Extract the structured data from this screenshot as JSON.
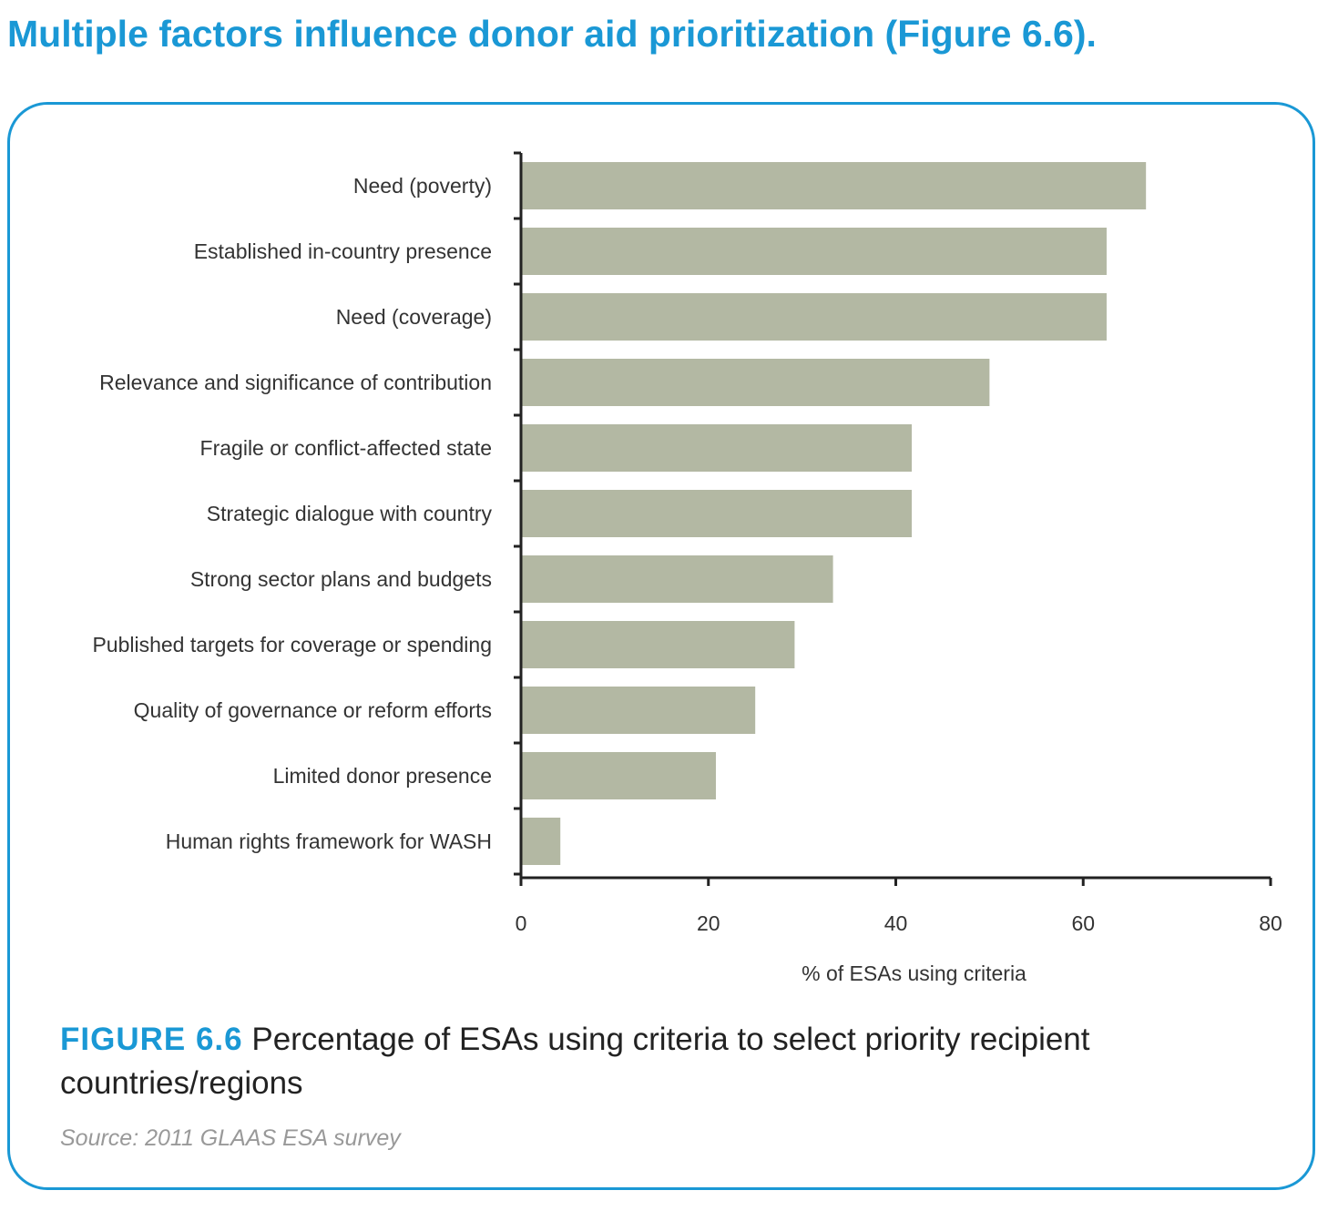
{
  "heading": "Multiple factors influence donor aid prioritization (Figure 6.6).",
  "figure": {
    "label": "FIGURE 6.6",
    "caption": "Percentage of ESAs using criteria to select priority recipient countries/regions",
    "source": "Source: 2011 GLAAS ESA survey"
  },
  "colors": {
    "accent": "#1a98d5",
    "bar": "#b3b8a3",
    "axis": "#222222",
    "text": "#333333",
    "source": "#999999"
  },
  "chart_data": {
    "type": "bar",
    "orientation": "horizontal",
    "categories": [
      "Need (poverty)",
      "Established in-country presence",
      "Need (coverage)",
      "Relevance and significance of contribution",
      "Fragile or conflict-affected state ",
      "Strategic dialogue with country",
      "Strong sector plans and budgets",
      "Published targets for coverage or spending",
      "Quality of governance or reform efforts",
      "Limited donor presence",
      "Human rights framework for WASH"
    ],
    "values": [
      66.7,
      62.5,
      62.5,
      50.0,
      41.7,
      41.7,
      33.3,
      29.2,
      25.0,
      20.8,
      4.2
    ],
    "xlabel": "% of ESAs using criteria",
    "ylabel": "",
    "xlim": [
      0,
      80
    ],
    "xticks": [
      0,
      20,
      40,
      60,
      80
    ],
    "grid": false,
    "legend": "none"
  }
}
